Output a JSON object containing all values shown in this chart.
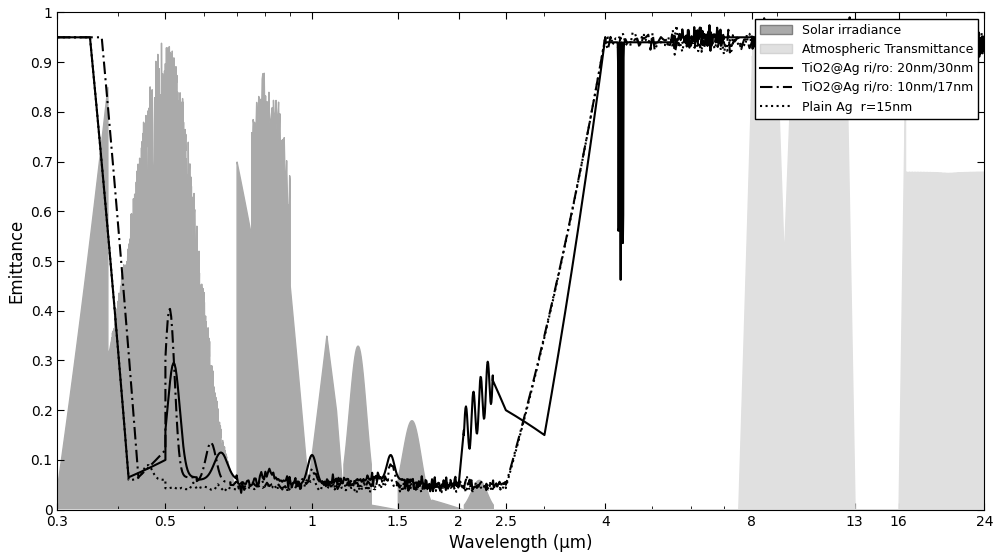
{
  "xlabel": "Wavelength (μm)",
  "ylabel": "Emittance",
  "xlim_log": [
    -0.5229,
    1.3802
  ],
  "ylim": [
    0,
    1
  ],
  "solar_color": "#aaaaaa",
  "atm_color": "#e0e0e0",
  "line_color": "#000000",
  "legend_labels": [
    "Solar irradiance",
    "Atmospheric Transmittance",
    "TiO2@Ag ri/ro: 20nm/30nm",
    "TiO2@Ag ri/ro: 10nm/17nm",
    "Plain Ag  r=15nm"
  ],
  "figsize": [
    10.0,
    5.59
  ],
  "dpi": 100
}
